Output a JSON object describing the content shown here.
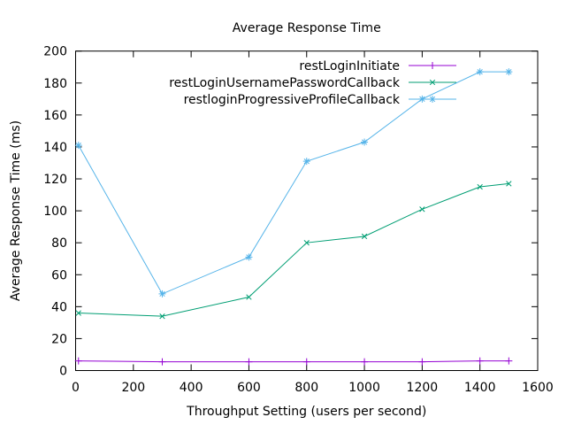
{
  "window": {
    "background_color": "#ffffff"
  },
  "chart_data": {
    "type": "line",
    "title": "Average Response Time",
    "xlabel": "Throughput Setting (users per second)",
    "ylabel": "Average Response Time (ms)",
    "xlim": [
      0,
      1600
    ],
    "ylim": [
      0,
      200
    ],
    "xticks": [
      0,
      200,
      400,
      600,
      800,
      1000,
      1200,
      1400,
      1600
    ],
    "yticks": [
      0,
      20,
      40,
      60,
      80,
      100,
      120,
      140,
      160,
      180,
      200
    ],
    "grid": false,
    "legend_position": "top-right-inside",
    "axis_color": "#000000",
    "x": [
      10,
      300,
      600,
      800,
      1000,
      1200,
      1400,
      1500
    ],
    "series": [
      {
        "name": "restLoginInitiate",
        "marker": "plus",
        "color": "#9400d3",
        "values": [
          6,
          5.5,
          5.5,
          5.5,
          5.5,
          5.5,
          6,
          6
        ]
      },
      {
        "name": "restLoginUsernamePasswordCallback",
        "marker": "cross",
        "color": "#009e73",
        "values": [
          36,
          34,
          46,
          80,
          84,
          101,
          115,
          117
        ]
      },
      {
        "name": "restloginProgressiveProfileCallback",
        "marker": "asterisk",
        "color": "#56b4e9",
        "values": [
          141,
          48,
          71,
          131,
          143,
          170,
          187,
          187
        ]
      }
    ]
  }
}
